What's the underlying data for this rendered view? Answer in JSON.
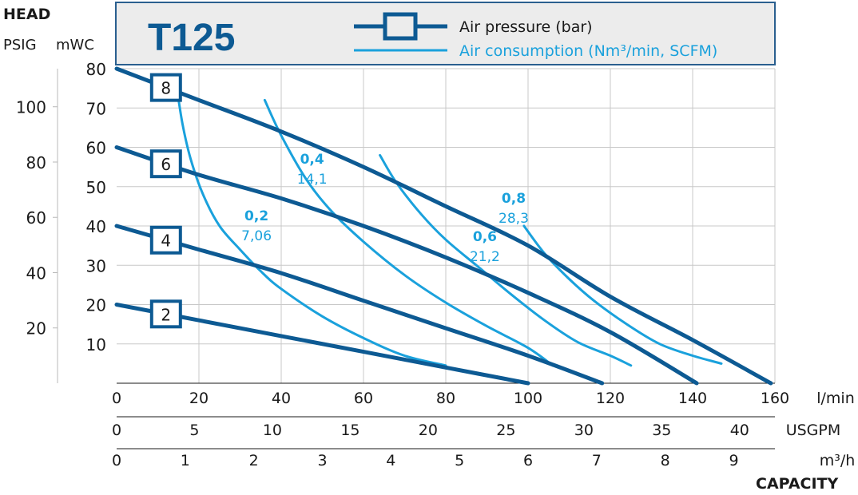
{
  "chart_data": {
    "type": "line",
    "title": "T125",
    "legend": {
      "pressure_label": "Air pressure (bar)",
      "consumption_label_main": "Air consumption (Nm³/min, ",
      "consumption_label_scfm": "SCFM)",
      "placement": "top"
    },
    "colors": {
      "pressure": "#0d5a93",
      "consumption": "#1aa1dc",
      "grid": "#c8c8c8",
      "frame": "#5a86ad"
    },
    "y_axis": {
      "title": "HEAD",
      "psig_label": "PSIG",
      "mwc_label": "mWC",
      "mwc_range": [
        0,
        80
      ],
      "mwc_ticks": [
        10,
        20,
        30,
        40,
        50,
        60,
        70,
        80
      ],
      "psig_ticks": [
        20,
        40,
        60,
        80,
        100
      ]
    },
    "x_axes": [
      {
        "unit": "l/min",
        "range": [
          0,
          160
        ],
        "ticks": [
          "0",
          "20",
          "40",
          "60",
          "80",
          "100",
          "120",
          "140",
          "160"
        ],
        "tick_values": [
          0,
          20,
          40,
          60,
          80,
          100,
          120,
          140,
          160
        ]
      },
      {
        "unit": "USGPM",
        "ticks": [
          "0",
          "5",
          "10",
          "15",
          "20",
          "25",
          "30",
          "35",
          "40"
        ],
        "tick_values": [
          0,
          5,
          10,
          15,
          20,
          25,
          30,
          35,
          40
        ]
      },
      {
        "unit": "m³/h",
        "ticks": [
          "0",
          "1",
          "2",
          "3",
          "4",
          "5",
          "6",
          "7",
          "8",
          "9"
        ],
        "tick_values": [
          0,
          1,
          2,
          3,
          4,
          5,
          6,
          7,
          8,
          9
        ]
      }
    ],
    "capacity_label": "CAPACITY",
    "pressure_series": [
      {
        "name": "8",
        "points": [
          [
            0,
            80
          ],
          [
            20,
            72
          ],
          [
            40,
            64
          ],
          [
            60,
            55
          ],
          [
            80,
            45
          ],
          [
            100,
            35
          ],
          [
            120,
            22
          ],
          [
            140,
            11
          ],
          [
            159,
            0
          ]
        ]
      },
      {
        "name": "6",
        "points": [
          [
            0,
            60
          ],
          [
            20,
            53
          ],
          [
            40,
            47
          ],
          [
            60,
            40
          ],
          [
            80,
            32
          ],
          [
            100,
            23
          ],
          [
            120,
            13
          ],
          [
            141,
            0
          ]
        ]
      },
      {
        "name": "4",
        "points": [
          [
            0,
            40
          ],
          [
            20,
            34
          ],
          [
            40,
            28
          ],
          [
            60,
            21
          ],
          [
            80,
            14
          ],
          [
            100,
            7
          ],
          [
            118,
            0
          ]
        ]
      },
      {
        "name": "2",
        "points": [
          [
            0,
            20
          ],
          [
            20,
            16
          ],
          [
            40,
            12
          ],
          [
            60,
            8
          ],
          [
            80,
            4
          ],
          [
            100,
            0
          ]
        ]
      }
    ],
    "consumption_series": [
      {
        "name": "0,2",
        "scfm": "7,06",
        "points": [
          [
            14.5,
            76
          ],
          [
            16,
            66
          ],
          [
            18,
            57
          ],
          [
            21,
            48
          ],
          [
            25,
            40
          ],
          [
            30,
            34
          ],
          [
            35,
            28.5
          ],
          [
            40,
            24
          ],
          [
            50,
            17
          ],
          [
            60,
            11.5
          ],
          [
            70,
            7
          ],
          [
            80,
            4.5
          ]
        ]
      },
      {
        "name": "0,4",
        "scfm": "14,1",
        "points": [
          [
            36,
            72
          ],
          [
            40,
            63
          ],
          [
            46,
            52
          ],
          [
            52,
            44
          ],
          [
            60,
            36
          ],
          [
            70,
            27.5
          ],
          [
            80,
            20.5
          ],
          [
            90,
            14.5
          ],
          [
            100,
            9
          ],
          [
            106,
            4.5
          ]
        ]
      },
      {
        "name": "0,6",
        "scfm": "21,2",
        "points": [
          [
            64,
            58
          ],
          [
            68,
            51
          ],
          [
            74,
            43
          ],
          [
            80,
            36.5
          ],
          [
            88,
            29.5
          ],
          [
            96,
            22.5
          ],
          [
            104,
            16
          ],
          [
            112,
            10.5
          ],
          [
            120,
            7
          ],
          [
            125,
            4.5
          ]
        ]
      },
      {
        "name": "0,8",
        "scfm": "28,3",
        "points": [
          [
            99,
            40
          ],
          [
            104,
            33
          ],
          [
            110,
            26.5
          ],
          [
            116,
            21
          ],
          [
            124,
            15
          ],
          [
            132,
            10
          ],
          [
            140,
            7
          ],
          [
            147,
            5
          ]
        ]
      }
    ]
  }
}
